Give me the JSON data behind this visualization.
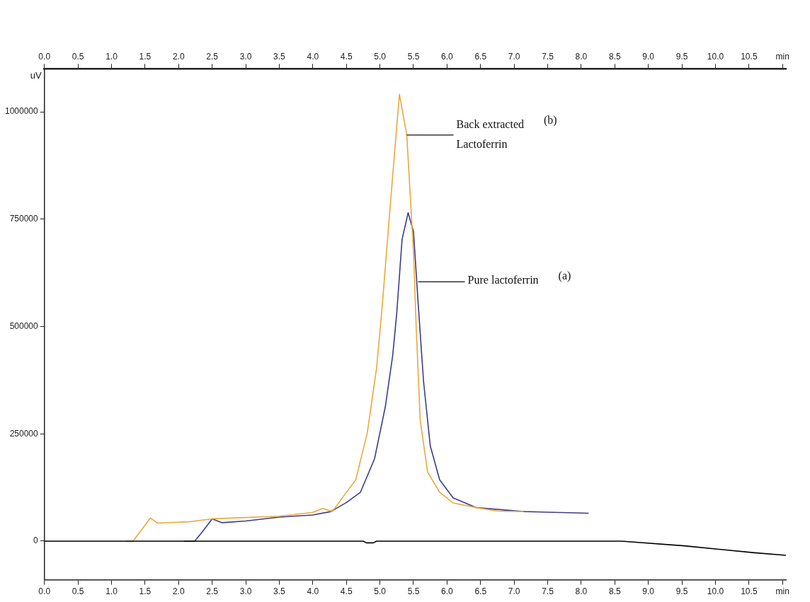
{
  "chart_data": {
    "type": "line",
    "ylabel": "uV",
    "grid": false,
    "legend": false,
    "marker": "none",
    "line_style": "solid",
    "xlim": [
      0,
      11.05
    ],
    "ylim": [
      -90000,
      1100000
    ],
    "xticks": [
      {
        "value": 0,
        "label": "0.0"
      },
      {
        "value": 0.5,
        "label": "0.5"
      },
      {
        "value": 1,
        "label": "1.0"
      },
      {
        "value": 1.5,
        "label": "1.5"
      },
      {
        "value": 2,
        "label": "2.0"
      },
      {
        "value": 2.5,
        "label": "2.5"
      },
      {
        "value": 3,
        "label": "3.0"
      },
      {
        "value": 3.5,
        "label": "3.5"
      },
      {
        "value": 4,
        "label": "4.0"
      },
      {
        "value": 4.5,
        "label": "4.5"
      },
      {
        "value": 5,
        "label": "5.0"
      },
      {
        "value": 5.5,
        "label": "5.5"
      },
      {
        "value": 6,
        "label": "6.0"
      },
      {
        "value": 6.5,
        "label": "6.5"
      },
      {
        "value": 7,
        "label": "7.0"
      },
      {
        "value": 7.5,
        "label": "7.5"
      },
      {
        "value": 8,
        "label": "8.0"
      },
      {
        "value": 8.5,
        "label": "8.5"
      },
      {
        "value": 9,
        "label": "9.0"
      },
      {
        "value": 9.5,
        "label": "9.5"
      },
      {
        "value": 10,
        "label": "10.0"
      },
      {
        "value": 10.5,
        "label": "10.5"
      },
      {
        "value": 11,
        "label": "min"
      }
    ],
    "x2lim": [
      0,
      11.05
    ],
    "x2ticks": [
      {
        "value": 0,
        "label": "0.0"
      },
      {
        "value": 0.5,
        "label": "0.5"
      },
      {
        "value": 1,
        "label": "1.0"
      },
      {
        "value": 1.5,
        "label": "1.5"
      },
      {
        "value": 2,
        "label": "2.0"
      },
      {
        "value": 2.5,
        "label": "2.5"
      },
      {
        "value": 3,
        "label": "3.0"
      },
      {
        "value": 3.5,
        "label": "3.5"
      },
      {
        "value": 4,
        "label": "4.0"
      },
      {
        "value": 4.5,
        "label": "4.5"
      },
      {
        "value": 5,
        "label": "5.0"
      },
      {
        "value": 5.5,
        "label": "5.5"
      },
      {
        "value": 6,
        "label": "6.0"
      },
      {
        "value": 6.5,
        "label": "6.5"
      },
      {
        "value": 7,
        "label": "7.0"
      },
      {
        "value": 7.5,
        "label": "7.5"
      },
      {
        "value": 8,
        "label": "8.0"
      },
      {
        "value": 8.5,
        "label": "8.5"
      },
      {
        "value": 9,
        "label": "9.0"
      },
      {
        "value": 9.5,
        "label": "9.5"
      },
      {
        "value": 10,
        "label": "10.0"
      },
      {
        "value": 10.5,
        "label": "10.5"
      },
      {
        "value": 11,
        "label": "min"
      }
    ],
    "yticks": [
      0,
      250000,
      500000,
      750000,
      1000000
    ],
    "series": [
      {
        "color": "#000000",
        "x": [
          0,
          4.75,
          4.8,
          4.9,
          4.95,
          8.6,
          9.54,
          10.58,
          11.05
        ],
        "values": [
          0,
          0,
          -4000,
          -4000,
          0,
          0,
          -11000,
          -27000,
          -33000
        ]
      },
      {
        "color": "#e8a93a",
        "x": [
          1.21,
          1.32,
          1.58,
          1.68,
          2.14,
          2.5,
          3.5,
          4.0,
          4.15,
          4.27,
          4.32,
          4.52,
          4.64,
          4.81,
          4.95,
          5.03,
          5.16,
          5.29,
          5.4,
          5.5,
          5.54,
          5.6,
          5.71,
          5.89,
          6.09,
          6.44,
          6.75,
          7.14
        ],
        "values": [
          0,
          0,
          54000,
          42000,
          45000,
          52000,
          58000,
          67000,
          76000,
          70000,
          75000,
          118000,
          143000,
          251000,
          403000,
          540000,
          794000,
          1041000,
          946000,
          674000,
          500000,
          282000,
          161000,
          114000,
          89000,
          78000,
          70000,
          69000
        ]
      },
      {
        "color": "#3c3c8c",
        "x": [
          2.08,
          2.24,
          2.36,
          2.5,
          2.65,
          3.0,
          3.5,
          4.0,
          4.27,
          4.5,
          4.71,
          4.92,
          5.08,
          5.19,
          5.25,
          5.33,
          5.42,
          5.5,
          5.57,
          5.65,
          5.75,
          5.89,
          6.09,
          6.44,
          7.14,
          8.11
        ],
        "values": [
          0,
          0,
          23000,
          52000,
          43000,
          47000,
          56000,
          61000,
          69000,
          90000,
          114000,
          192000,
          313000,
          432000,
          530000,
          703000,
          765000,
          721000,
          553000,
          372000,
          222000,
          143000,
          101000,
          78000,
          69000,
          65000
        ]
      }
    ],
    "annotations": [
      {
        "text": "Back extracted Lactoferrin",
        "x": 5.4,
        "y": 946000
      },
      "(b)",
      {
        "text": "Pure lactoferrin",
        "x": 5.57,
        "y": 604000
      },
      "(a)"
    ]
  }
}
